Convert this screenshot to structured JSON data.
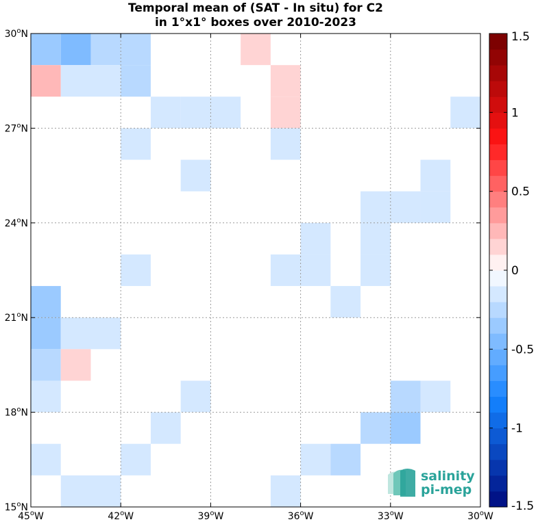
{
  "title_line1": "Temporal mean of (SAT - In situ) for C2",
  "title_line2": "in 1°x1° boxes over 2010-2023",
  "logo": {
    "line1": "salinity",
    "line2": "pi-mep",
    "color": "#2aa39a"
  },
  "chart_data": {
    "type": "heatmap",
    "extent": {
      "lon": [
        -45,
        -30
      ],
      "lat": [
        15,
        30
      ]
    },
    "lon_ticks": [
      {
        "value": -45,
        "label": "45°W"
      },
      {
        "value": -42,
        "label": "42°W"
      },
      {
        "value": -39,
        "label": "39°W"
      },
      {
        "value": -36,
        "label": "36°W"
      },
      {
        "value": -33,
        "label": "33°W"
      },
      {
        "value": -30,
        "label": "30°W"
      }
    ],
    "lat_ticks": [
      {
        "value": 15,
        "label": "15°N"
      },
      {
        "value": 18,
        "label": "18°N"
      },
      {
        "value": 21,
        "label": "21°N"
      },
      {
        "value": 24,
        "label": "24°N"
      },
      {
        "value": 27,
        "label": "27°N"
      },
      {
        "value": 30,
        "label": "30°N"
      }
    ],
    "grid": true,
    "colorbar": {
      "range": [
        -1.5,
        1.5
      ],
      "levels": 30,
      "ticks": [
        {
          "value": 1.5,
          "label": "1.5"
        },
        {
          "value": 1,
          "label": "1"
        },
        {
          "value": 0.5,
          "label": "0.5"
        },
        {
          "value": 0,
          "label": "0"
        },
        {
          "value": -0.5,
          "label": "-0.5"
        },
        {
          "value": -1,
          "label": "-1"
        },
        {
          "value": -1.5,
          "label": "-1.5"
        }
      ]
    },
    "cells": [
      {
        "lon": -45,
        "lat": 29,
        "value": -0.35
      },
      {
        "lon": -44,
        "lat": 29,
        "value": -0.45
      },
      {
        "lon": -43,
        "lat": 29,
        "value": -0.25
      },
      {
        "lon": -42,
        "lat": 29,
        "value": -0.25
      },
      {
        "lon": -38,
        "lat": 29,
        "value": 0.15
      },
      {
        "lon": -45,
        "lat": 28,
        "value": 0.25
      },
      {
        "lon": -44,
        "lat": 28,
        "value": -0.15
      },
      {
        "lon": -43,
        "lat": 28,
        "value": -0.15
      },
      {
        "lon": -42,
        "lat": 28,
        "value": -0.25
      },
      {
        "lon": -37,
        "lat": 28,
        "value": 0.15
      },
      {
        "lon": -41,
        "lat": 27,
        "value": -0.15
      },
      {
        "lon": -40,
        "lat": 27,
        "value": -0.15
      },
      {
        "lon": -39,
        "lat": 27,
        "value": -0.15
      },
      {
        "lon": -37,
        "lat": 27,
        "value": 0.15
      },
      {
        "lon": -31,
        "lat": 27,
        "value": -0.15
      },
      {
        "lon": -42,
        "lat": 26,
        "value": -0.15
      },
      {
        "lon": -37,
        "lat": 26,
        "value": -0.15
      },
      {
        "lon": -40,
        "lat": 25,
        "value": -0.15
      },
      {
        "lon": -32,
        "lat": 25,
        "value": -0.15
      },
      {
        "lon": -34,
        "lat": 24,
        "value": -0.15
      },
      {
        "lon": -33,
        "lat": 24,
        "value": -0.15
      },
      {
        "lon": -32,
        "lat": 24,
        "value": -0.15
      },
      {
        "lon": -36,
        "lat": 23,
        "value": -0.15
      },
      {
        "lon": -34,
        "lat": 23,
        "value": -0.15
      },
      {
        "lon": -42,
        "lat": 22,
        "value": -0.15
      },
      {
        "lon": -37,
        "lat": 22,
        "value": -0.15
      },
      {
        "lon": -36,
        "lat": 22,
        "value": -0.15
      },
      {
        "lon": -34,
        "lat": 22,
        "value": -0.15
      },
      {
        "lon": -45,
        "lat": 21,
        "value": -0.35
      },
      {
        "lon": -35,
        "lat": 21,
        "value": -0.15
      },
      {
        "lon": -45,
        "lat": 20,
        "value": -0.35
      },
      {
        "lon": -44,
        "lat": 20,
        "value": -0.15
      },
      {
        "lon": -43,
        "lat": 20,
        "value": -0.15
      },
      {
        "lon": -45,
        "lat": 19,
        "value": -0.25
      },
      {
        "lon": -44,
        "lat": 19,
        "value": 0.15
      },
      {
        "lon": -45,
        "lat": 18,
        "value": -0.15
      },
      {
        "lon": -40,
        "lat": 18,
        "value": -0.15
      },
      {
        "lon": -33,
        "lat": 18,
        "value": -0.25
      },
      {
        "lon": -32,
        "lat": 18,
        "value": -0.15
      },
      {
        "lon": -41,
        "lat": 17,
        "value": -0.15
      },
      {
        "lon": -34,
        "lat": 17,
        "value": -0.25
      },
      {
        "lon": -33,
        "lat": 17,
        "value": -0.35
      },
      {
        "lon": -45,
        "lat": 16,
        "value": -0.15
      },
      {
        "lon": -42,
        "lat": 16,
        "value": -0.15
      },
      {
        "lon": -36,
        "lat": 16,
        "value": -0.15
      },
      {
        "lon": -35,
        "lat": 16,
        "value": -0.25
      },
      {
        "lon": -44,
        "lat": 15,
        "value": -0.15
      },
      {
        "lon": -43,
        "lat": 15,
        "value": -0.15
      },
      {
        "lon": -37,
        "lat": 15,
        "value": -0.15
      }
    ]
  }
}
